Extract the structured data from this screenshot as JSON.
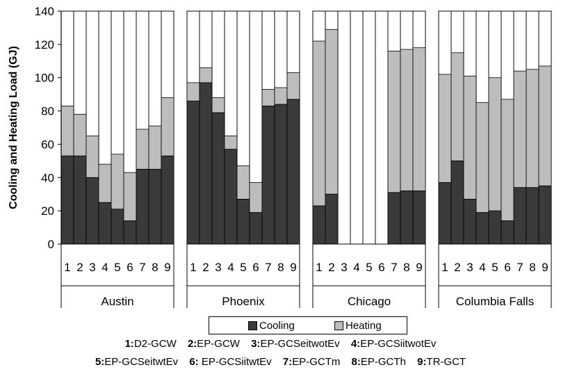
{
  "colors": {
    "cooling": "#3a3a3a",
    "heating": "#bdbdbd",
    "axis": "#000000",
    "background": "#ffffff"
  },
  "legend": {
    "cooling_label": "Cooling",
    "heating_label": "Heating"
  },
  "notes": [
    [
      {
        "num": "1:",
        "text": "D2-GCW"
      },
      {
        "num": "2:",
        "text": "EP-GCW"
      },
      {
        "num": "3:",
        "text": "EP-GCSeitwotEv"
      },
      {
        "num": "4:",
        "text": "EP-GCSiitwotEv"
      }
    ],
    [
      {
        "num": "5:",
        "text": "EP-GCSeitwtEv"
      },
      {
        "num": "6:",
        "text": " EP-GCSiitwtEv"
      },
      {
        "num": "7:",
        "text": "EP-GCTm"
      },
      {
        "num": "8:",
        "text": "EP-GCTh"
      },
      {
        "num": "9:",
        "text": "TR-GCT"
      }
    ]
  ],
  "chart_data": {
    "type": "bar",
    "stacked": true,
    "ylabel": "Cooling and Heating Load (GJ)",
    "ylim": [
      0,
      140
    ],
    "yticks": [
      0,
      20,
      40,
      60,
      80,
      100,
      120,
      140
    ],
    "categories": [
      "1",
      "2",
      "3",
      "4",
      "5",
      "6",
      "7",
      "8",
      "9"
    ],
    "groups": [
      {
        "name": "Austin",
        "cooling": [
          53,
          53,
          40,
          25,
          21,
          14,
          45,
          45,
          53
        ],
        "heating": [
          30,
          25,
          25,
          23,
          33,
          29,
          24,
          26,
          35
        ]
      },
      {
        "name": "Phoenix",
        "cooling": [
          86,
          97,
          79,
          57,
          27,
          19,
          83,
          84,
          87
        ],
        "heating": [
          11,
          9,
          9,
          8,
          20,
          18,
          10,
          10,
          16
        ]
      },
      {
        "name": "Chicago",
        "cooling": [
          23,
          30,
          0,
          0,
          0,
          0,
          31,
          32,
          32
        ],
        "heating": [
          99,
          99,
          0,
          0,
          0,
          0,
          85,
          85,
          86
        ]
      },
      {
        "name": "Columbia Falls",
        "cooling": [
          37,
          50,
          27,
          19,
          20,
          14,
          34,
          34,
          35
        ],
        "heating": [
          65,
          65,
          74,
          66,
          80,
          73,
          70,
          71,
          72
        ]
      }
    ],
    "legend_position": "bottom",
    "grid": false
  }
}
